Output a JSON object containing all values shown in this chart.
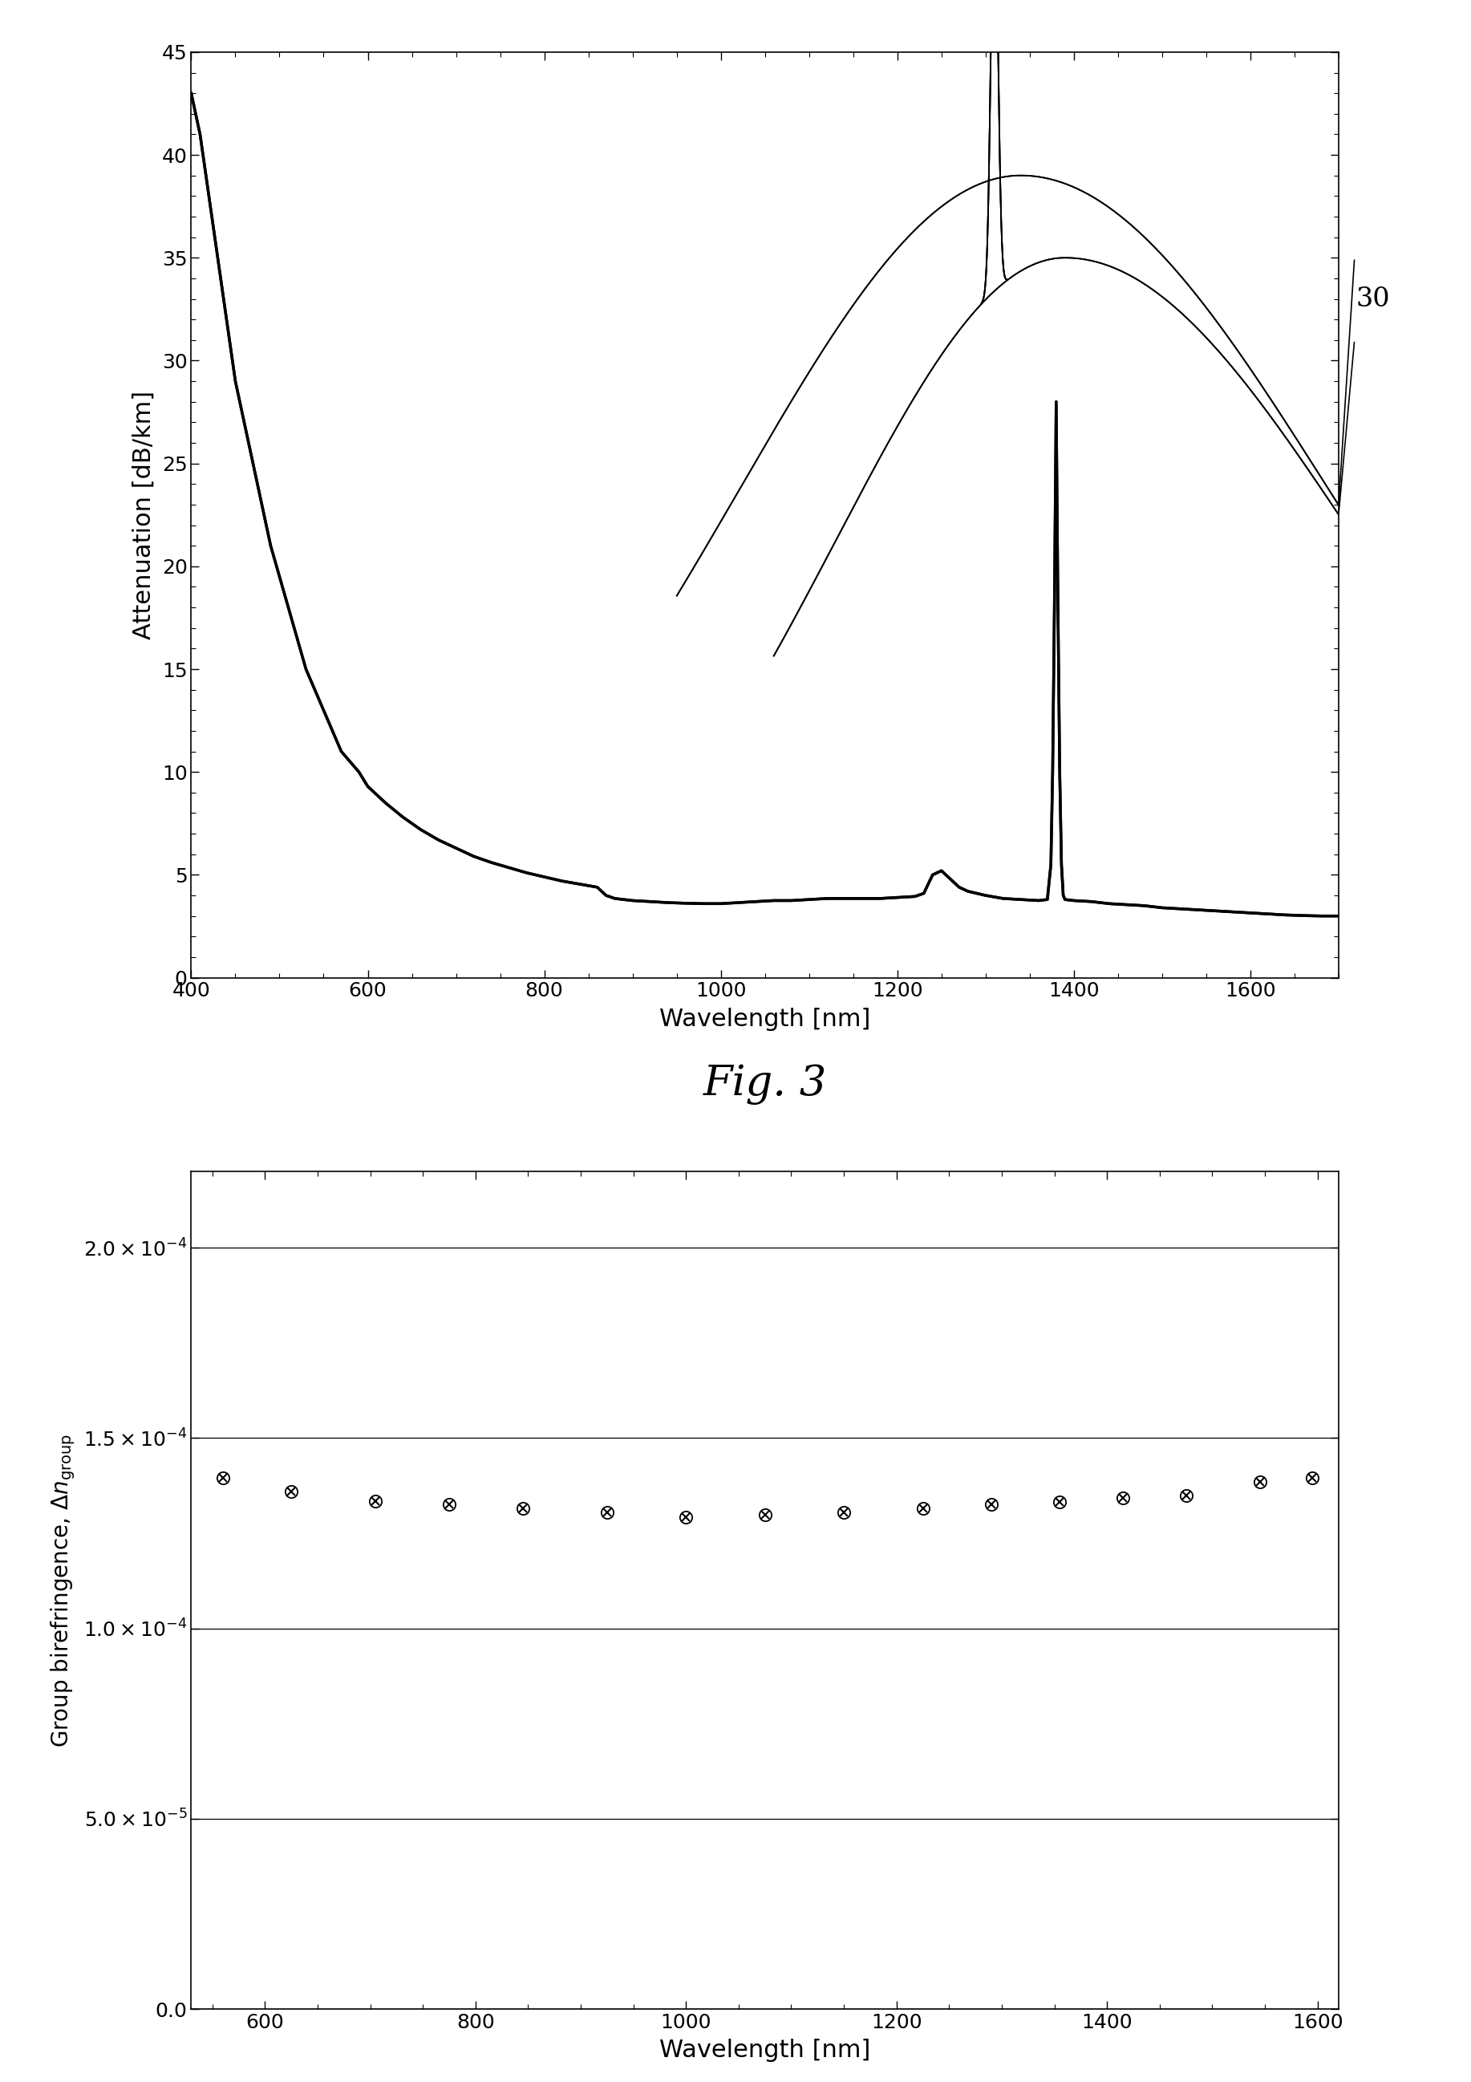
{
  "fig3_label": "Fig. 3",
  "plot1": {
    "xlabel": "Wavelength [nm]",
    "ylabel": "Attenuation [dB/km]",
    "xlim": [
      400,
      1700
    ],
    "ylim": [
      0,
      45
    ],
    "yticks": [
      0,
      5,
      10,
      15,
      20,
      25,
      30,
      35,
      40,
      45
    ],
    "xticks": [
      400,
      600,
      800,
      1000,
      1200,
      1400,
      1600
    ]
  },
  "plot2": {
    "xlabel": "Wavelength [nm]",
    "ylabel": "Group birefringence, Δn",
    "xlim": [
      530,
      1620
    ],
    "ylim": [
      0,
      0.00022
    ],
    "yticks": [
      0.0,
      5e-05,
      0.0001,
      0.00015,
      0.0002
    ],
    "xticks": [
      600,
      800,
      1000,
      1200,
      1400,
      1600
    ],
    "data_x": [
      560,
      625,
      705,
      775,
      845,
      925,
      1000,
      1075,
      1150,
      1225,
      1290,
      1355,
      1415,
      1475,
      1545,
      1595
    ],
    "data_y": [
      0.0001395,
      0.000136,
      0.0001335,
      0.0001325,
      0.0001315,
      0.0001305,
      0.0001292,
      0.0001298,
      0.0001305,
      0.0001315,
      0.0001325,
      0.0001332,
      0.0001342,
      0.000135,
      0.0001385,
      0.0001395
    ]
  }
}
